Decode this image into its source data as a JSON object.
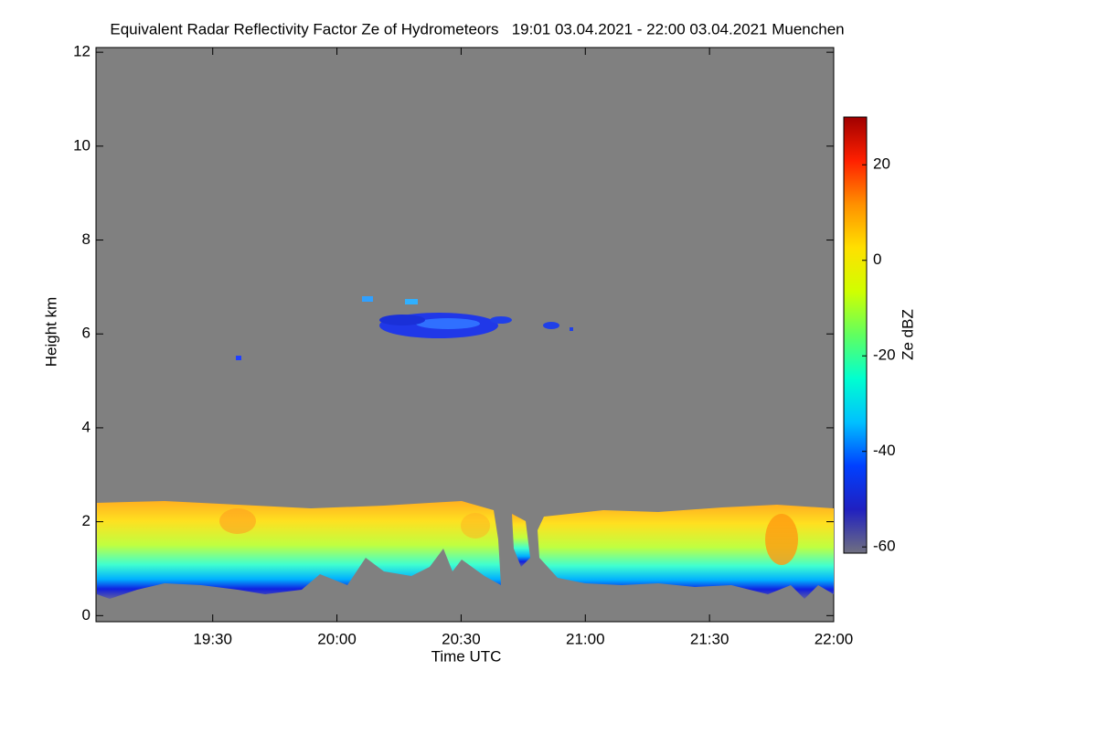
{
  "chart_data": {
    "type": "heatmap",
    "title": "Equivalent Radar Reflectivity Factor Ze of Hydrometeors   19:01 03.04.2021 - 22:00 03.04.2021 Muenchen",
    "xlabel": "Time UTC",
    "ylabel": "Height km",
    "colorbar_label": "Ze dBZ",
    "xlim": [
      19.03,
      22.0
    ],
    "xticks": [
      {
        "value": 19.5,
        "label": "19:30"
      },
      {
        "value": 20.0,
        "label": "20:00"
      },
      {
        "value": 20.5,
        "label": "20:30"
      },
      {
        "value": 21.0,
        "label": "21:00"
      },
      {
        "value": 21.5,
        "label": "21:30"
      },
      {
        "value": 22.0,
        "label": "22:00"
      }
    ],
    "ylim": [
      -0.13,
      12.1
    ],
    "yticks": [
      0,
      2,
      4,
      6,
      8,
      10,
      12
    ],
    "clim": [
      -61.3,
      30
    ],
    "cticks": [
      -60,
      -40,
      -20,
      0,
      20
    ],
    "colormap": [
      "#707080",
      "#2020c0",
      "#0040ff",
      "#00c0ff",
      "#00ffd0",
      "#60ff60",
      "#d0ff00",
      "#ffe000",
      "#ff9000",
      "#ff2000",
      "#a00000"
    ],
    "background": "#808080"
  }
}
